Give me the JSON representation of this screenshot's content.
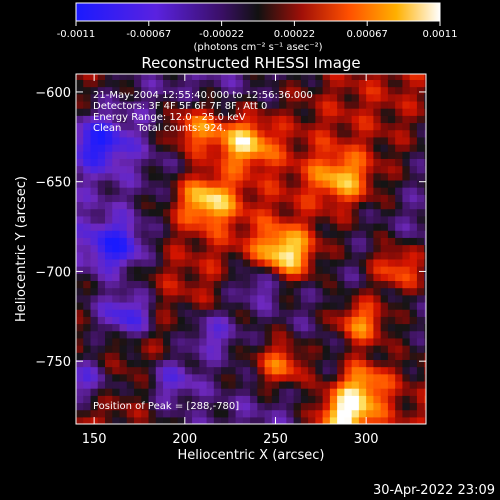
{
  "chart_data": {
    "type": "heatmap",
    "title": "Reconstructed RHESSI Image",
    "xlabel": "Heliocentric X (arcsec)",
    "ylabel": "Heliocentric Y (arcsec)",
    "xlim": [
      140,
      333
    ],
    "ylim": [
      -785,
      -590
    ],
    "x_ticks": [
      150,
      200,
      250,
      300
    ],
    "y_ticks": [
      -600,
      -650,
      -700,
      -750
    ],
    "colorbar": {
      "range": [
        -0.0011,
        0.0011
      ],
      "ticks": [
        "-0.0011",
        "-0.00067",
        "-0.00022",
        "0.00022",
        "0.00067",
        "0.0011"
      ],
      "unit_label": "(photons cm⁻² s⁻¹ asec⁻²)",
      "colors": {
        "low": "#1a1aff",
        "mid_low": "#6a1fc0",
        "mid": "#141414",
        "mid_high": "#c81a00",
        "high_orange": "#ff8a00",
        "high_yellow": "#ffe060",
        "peak": "#ffffff"
      }
    },
    "annotations": [
      "21-May-2004 12:55:40.000 to 12:56:36.000",
      "Detectors: 3F 4F 5F 6F 7F 8F, Att 0",
      "Energy Range: 12.0 - 25.0 keV",
      "Clean     Total counts: 924."
    ],
    "peak_label": "Position of Peak = [288,-780]",
    "peak_position": [
      288,
      -780
    ],
    "bright_regions": [
      {
        "x": 205,
        "y": -620,
        "value": 0.0008
      },
      {
        "x": 233,
        "y": -628,
        "value": 0.0009
      },
      {
        "x": 212,
        "y": -660,
        "value": 0.0009
      },
      {
        "x": 255,
        "y": -690,
        "value": 0.001
      },
      {
        "x": 287,
        "y": -648,
        "value": 0.0007
      },
      {
        "x": 318,
        "y": -698,
        "value": 0.0008
      },
      {
        "x": 297,
        "y": -728,
        "value": 0.0009
      },
      {
        "x": 254,
        "y": -752,
        "value": 0.0008
      },
      {
        "x": 298,
        "y": -762,
        "value": 0.0008
      },
      {
        "x": 288,
        "y": -780,
        "value": 0.0011
      }
    ],
    "dim_regions": [
      {
        "x": 152,
        "y": -628,
        "value": -0.0008
      },
      {
        "x": 162,
        "y": -686,
        "value": -0.0009
      },
      {
        "x": 168,
        "y": -724,
        "value": -0.0009
      },
      {
        "x": 214,
        "y": -734,
        "value": -0.0006
      },
      {
        "x": 145,
        "y": -760,
        "value": -0.0007
      },
      {
        "x": 193,
        "y": -760,
        "value": -0.0006
      },
      {
        "x": 240,
        "y": -706,
        "value": -0.0006
      }
    ]
  },
  "footer": {
    "timestamp": "30-Apr-2022 23:09"
  }
}
